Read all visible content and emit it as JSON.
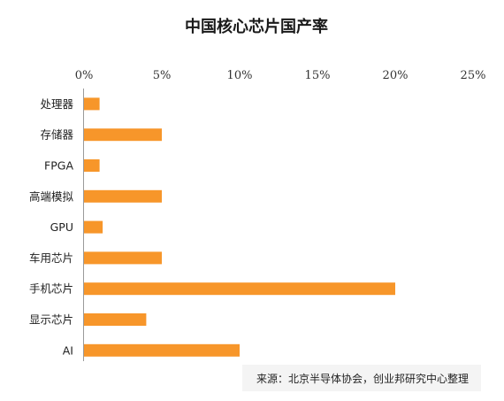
{
  "chart_data": {
    "type": "bar",
    "orientation": "horizontal",
    "title": "中国核心芯片国产率",
    "categories": [
      "处理器",
      "存储器",
      "FPGA",
      "高端模拟",
      "GPU",
      "车用芯片",
      "手机芯片",
      "显示芯片",
      "AI"
    ],
    "values": [
      1,
      5,
      1,
      5,
      1.2,
      5,
      20,
      4,
      10
    ],
    "unit": "%",
    "xlim": [
      0,
      25
    ],
    "xticks": [
      "0%",
      "5%",
      "10%",
      "15%",
      "20%",
      "25%"
    ],
    "xtick_values": [
      0,
      5,
      10,
      15,
      20,
      25
    ],
    "x_axis_position": "top",
    "grid": false,
    "legend": "none",
    "bar_color": "#F7962A",
    "source": "来源：北京半导体协会，创业邦研究中心整理"
  }
}
